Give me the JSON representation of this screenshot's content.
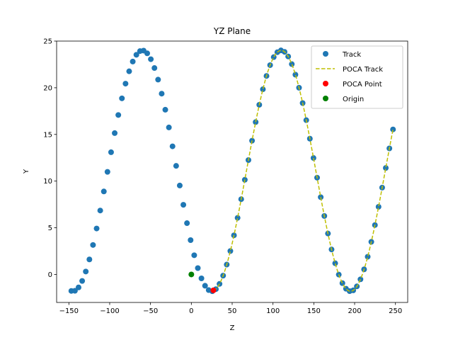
{
  "chart_data": {
    "type": "scatter",
    "title": "YZ Plane",
    "xlabel": "Z",
    "ylabel": "Y",
    "xlim": [
      -165,
      265
    ],
    "ylim": [
      -3,
      25
    ],
    "xticks": [
      -150,
      -100,
      -50,
      0,
      50,
      100,
      150,
      200,
      250
    ],
    "yticks": [
      0,
      5,
      10,
      15,
      20,
      25
    ],
    "legend_position": "top-right",
    "track_model": {
      "amplitude": 12.9,
      "offset": 11.1,
      "period": 170,
      "phase_z": -60,
      "z_start": -147,
      "z_end": 247,
      "point_count": 90
    },
    "poca_track_range": [
      27,
      247
    ],
    "series": [
      {
        "name": "Track",
        "kind": "scatter",
        "color": "#1f77b4"
      },
      {
        "name": "POCA Track",
        "kind": "dashed-line",
        "color": "#bfbf00"
      },
      {
        "name": "POCA Point",
        "kind": "scatter",
        "color": "#ff0000",
        "points": [
          [
            27,
            -1.7
          ]
        ]
      },
      {
        "name": "Origin",
        "kind": "scatter",
        "color": "#008000",
        "points": [
          [
            0,
            0
          ]
        ]
      }
    ]
  }
}
